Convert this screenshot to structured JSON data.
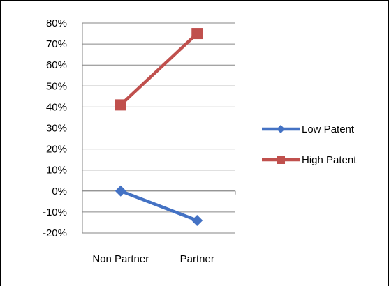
{
  "chart_data": {
    "type": "line",
    "categories": [
      "Non Partner",
      "Partner"
    ],
    "series": [
      {
        "name": "Low Patent",
        "values": [
          0,
          -14
        ],
        "color": "#4472C4",
        "marker": "diamond"
      },
      {
        "name": "High Patent",
        "values": [
          41,
          75
        ],
        "color": "#C0504D",
        "marker": "square"
      }
    ],
    "y_ticks": [
      "80%",
      "70%",
      "60%",
      "50%",
      "40%",
      "30%",
      "20%",
      "10%",
      "0%",
      "-10%",
      "-20%"
    ],
    "ylim": [
      -20,
      80
    ],
    "grid": true,
    "legend": "right"
  }
}
